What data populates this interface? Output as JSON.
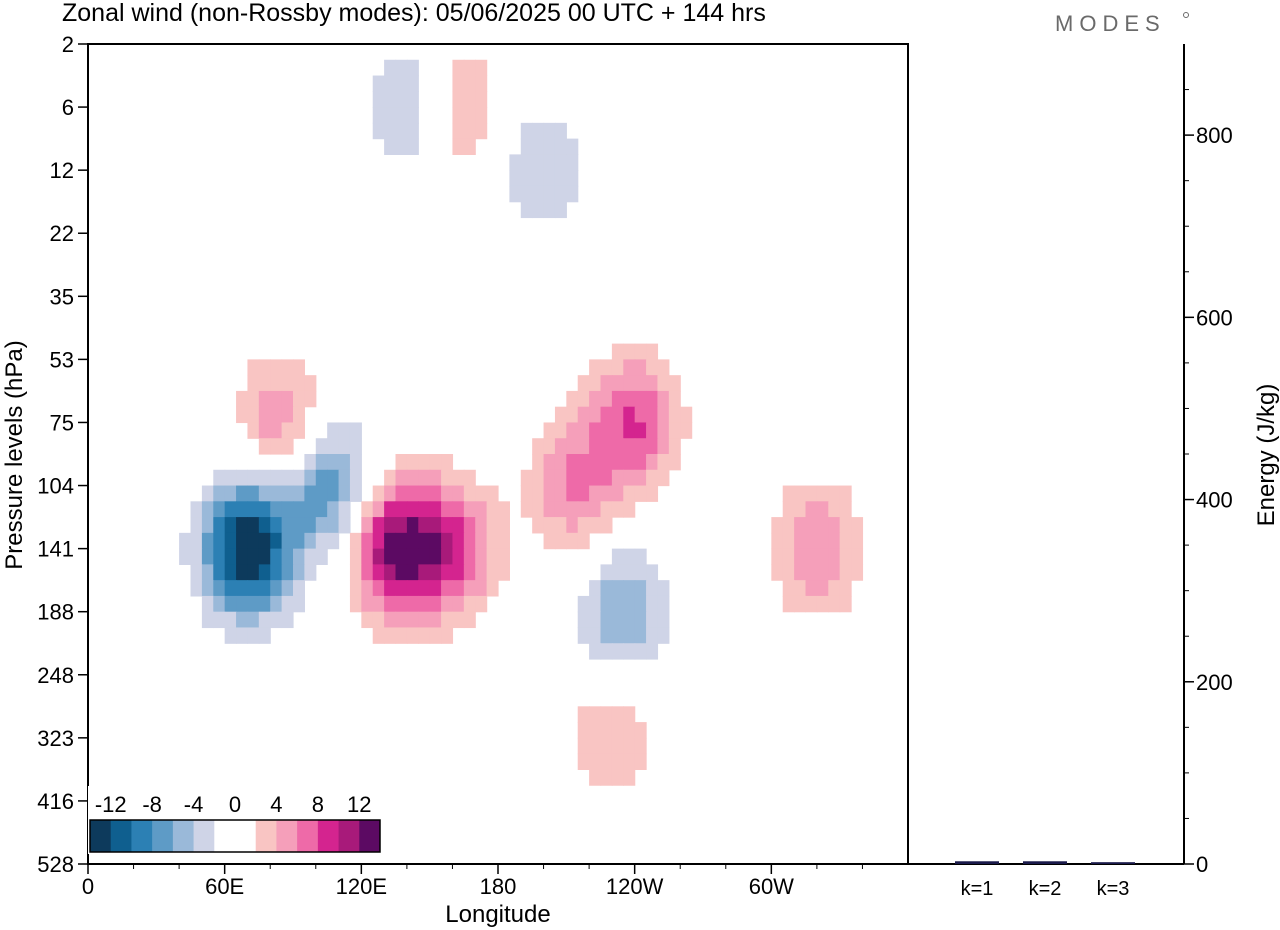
{
  "header": {
    "title": "Zonal wind (non-Rossby modes):  05/06/2025  00 UTC  + 144 hrs",
    "brand": "MODES"
  },
  "colors": {
    "levels": [
      "#0d3a5c",
      "#0f5f8f",
      "#2c80b4",
      "#5e9bc6",
      "#9ab9d9",
      "#cfd4e7",
      "#ffffff",
      "#ffffff",
      "#f9c5c3",
      "#f59fba",
      "#ee6aa8",
      "#d4248f",
      "#a81a7a",
      "#5c0a63"
    ],
    "axis": "#000000"
  },
  "chart_data": [
    {
      "type": "heatmap",
      "xlabel": "Longitude",
      "ylabel": "Pressure levels (hPa)",
      "x_ticks": [
        "0",
        "60E",
        "120E",
        "180",
        "120W",
        "60W"
      ],
      "x_tick_values": [
        0,
        60,
        120,
        180,
        240,
        300
      ],
      "x_range": [
        0,
        360
      ],
      "y_ticks": [
        "2",
        "6",
        "12",
        "22",
        "35",
        "53",
        "75",
        "104",
        "141",
        "188",
        "248",
        "323",
        "416",
        "528"
      ],
      "y_scale": "level index (top = 2 hPa)",
      "colorbar": {
        "ticks": [
          "-12",
          "-8",
          "-4",
          "0",
          "4",
          "8",
          "12"
        ],
        "range": [
          -14,
          14
        ],
        "step": 2,
        "placement": "bottom-left inset"
      },
      "features": [
        {
          "sign": "negative",
          "lon": 70,
          "level": "141",
          "value": -14
        },
        {
          "sign": "negative",
          "lon": 105,
          "level": "104",
          "value": -8
        },
        {
          "sign": "negative",
          "lon": 235,
          "level": "188",
          "value": -6
        },
        {
          "sign": "negative",
          "lon": 145,
          "level": "6",
          "value": -6
        },
        {
          "sign": "negative",
          "lon": 200,
          "level": "12",
          "value": -4
        },
        {
          "sign": "positive",
          "lon": 135,
          "level": "141",
          "value": 12
        },
        {
          "sign": "positive",
          "lon": 160,
          "level": "141",
          "value": 8
        },
        {
          "sign": "positive",
          "lon": 240,
          "level": "75",
          "value": 8
        },
        {
          "sign": "positive",
          "lon": 213,
          "level": "104",
          "value": 6
        },
        {
          "sign": "positive",
          "lon": 320,
          "level": "141",
          "value": 6
        },
        {
          "sign": "positive",
          "lon": 85,
          "level": "75",
          "value": 6
        },
        {
          "sign": "positive",
          "lon": 160,
          "level": "6",
          "value": 6
        },
        {
          "sign": "positive",
          "lon": 230,
          "level": "323",
          "value": 4
        }
      ]
    },
    {
      "type": "bar",
      "categories": [
        "k=1",
        "k=2",
        "k=3"
      ],
      "values": [
        3,
        3,
        2
      ],
      "ylabel": "Energy (J/kg)",
      "ylim": [
        0,
        900
      ],
      "y_ticks": [
        "0",
        "200",
        "400",
        "600",
        "800"
      ],
      "y_tick_values": [
        0,
        200,
        400,
        600,
        800
      ]
    }
  ]
}
